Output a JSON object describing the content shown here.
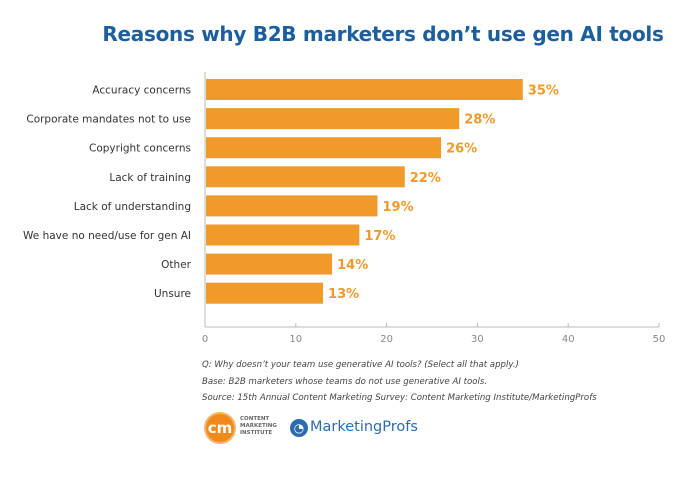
{
  "chart_data": {
    "type": "bar",
    "orientation": "horizontal",
    "title": "Reasons why B2B marketers don’t use gen AI tools",
    "categories": [
      "Accuracy concerns",
      "Corporate mandates not to use",
      "Copyright concerns",
      "Lack of training",
      "Lack of understanding",
      "We have no need/use for gen AI",
      "Other",
      "Unsure"
    ],
    "values": [
      35,
      28,
      26,
      22,
      19,
      17,
      14,
      13
    ],
    "data_labels": [
      "35%",
      "28%",
      "26%",
      "22%",
      "19%",
      "17%",
      "14%",
      "13%"
    ],
    "xlim": [
      0,
      50
    ],
    "xticks": [
      "0",
      "10",
      "20",
      "30",
      "40",
      "50"
    ],
    "grid": false,
    "bar_color": "#ef9a2b",
    "label_color": "#ef9a2b",
    "title_color": "#1c5f9e"
  },
  "notes": {
    "question": "Q: Why doesn’t your team use generative AI tools? (Select all that apply.)",
    "base": "Base: B2B marketers whose teams do not use generative AI tools.",
    "source": "Source: 15th Annual Content Marketing Survey: Content Marketing Institute/MarketingProfs"
  },
  "logos": {
    "cmi_mark": "cm",
    "cmi_text": [
      "CONTENT",
      "MARKETING",
      "INSTITUTE"
    ],
    "marketingprofs": "MarketingProfs"
  }
}
